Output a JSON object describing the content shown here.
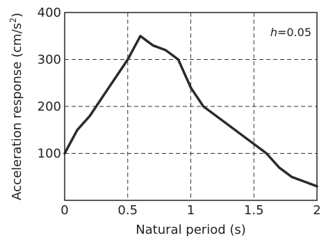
{
  "chart_data": {
    "type": "line",
    "title": "",
    "xlabel": "Natural period (s)",
    "ylabel_main": "Acceleration response (cm/s",
    "ylabel_sup": "2",
    "ylabel_tail": ")",
    "annotation_var": "h",
    "annotation_rest": "=0.05",
    "xlim": [
      0,
      2
    ],
    "ylim": [
      0,
      400
    ],
    "grid": true,
    "grid_style": "dashed",
    "x_ticks": [
      0,
      0.5,
      1,
      1.5,
      2
    ],
    "x_tick_labels": [
      "0",
      "0.5",
      "1",
      "1.5",
      "2"
    ],
    "y_ticks": [
      100,
      200,
      300,
      400
    ],
    "y_tick_labels": [
      "100",
      "200",
      "300",
      "400"
    ],
    "series": [
      {
        "color": "#2b2b2b",
        "x": [
          0,
          0.1,
          0.2,
          0.3,
          0.4,
          0.5,
          0.6,
          0.7,
          0.8,
          0.9,
          1.0,
          1.1,
          1.2,
          1.3,
          1.4,
          1.5,
          1.6,
          1.7,
          1.8,
          1.9,
          2.0
        ],
        "y": [
          100,
          150,
          180,
          220,
          260,
          300,
          350,
          330,
          320,
          300,
          240,
          200,
          180,
          160,
          140,
          120,
          100,
          70,
          50,
          40,
          30
        ]
      }
    ]
  }
}
